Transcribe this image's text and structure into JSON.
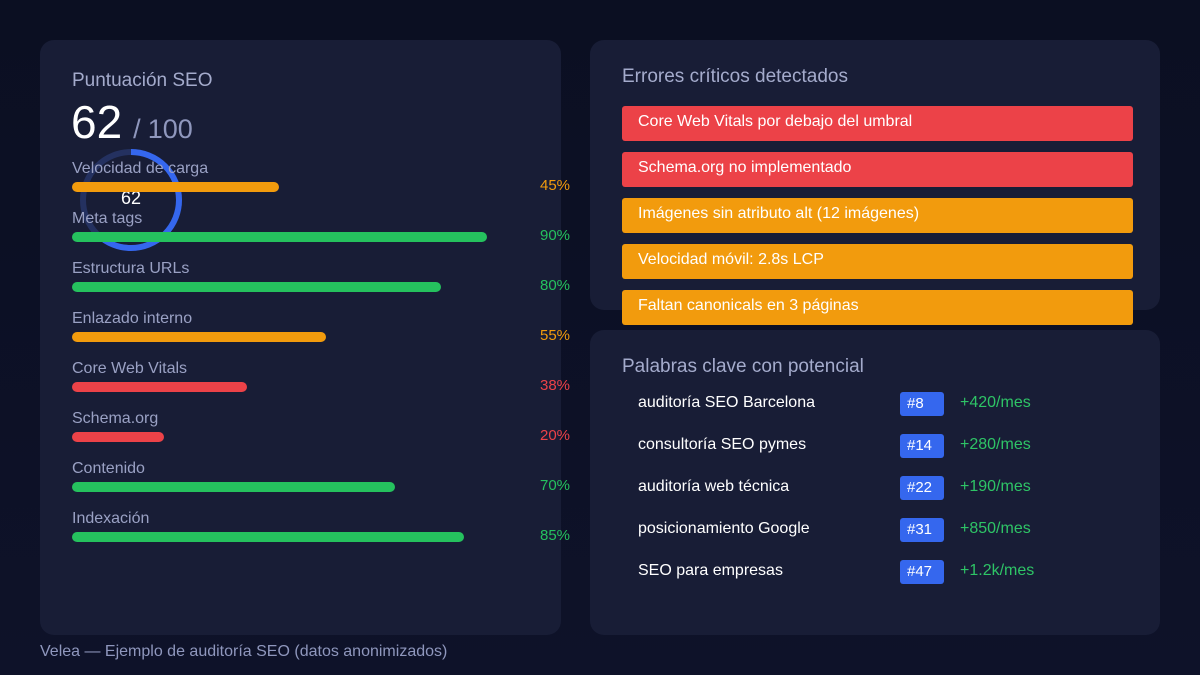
{
  "score_card": {
    "title": "Puntuación SEO",
    "score": "62",
    "separator": "/",
    "max": "100",
    "gauge_label": "62",
    "gauge_fraction": 0.62,
    "metrics": [
      {
        "label": "Velocidad de carga",
        "value": 45,
        "pct": "45%",
        "color": "#f29b0d"
      },
      {
        "label": "Meta tags",
        "value": 90,
        "pct": "90%",
        "color": "#25c15e"
      },
      {
        "label": "Estructura URLs",
        "value": 80,
        "pct": "80%",
        "color": "#25c15e"
      },
      {
        "label": "Enlazado interno",
        "value": 55,
        "pct": "55%",
        "color": "#f29b0d"
      },
      {
        "label": "Core Web Vitals",
        "value": 38,
        "pct": "38%",
        "color": "#ec4248"
      },
      {
        "label": "Schema.org",
        "value": 20,
        "pct": "20%",
        "color": "#ec4248"
      },
      {
        "label": "Contenido",
        "value": 70,
        "pct": "70%",
        "color": "#25c15e"
      },
      {
        "label": "Indexación",
        "value": 85,
        "pct": "85%",
        "color": "#25c15e"
      }
    ]
  },
  "errors_card": {
    "title": "Errores críticos detectados",
    "items": [
      {
        "text": "Core Web Vitals por debajo del umbral",
        "color": "#ec4248"
      },
      {
        "text": "Schema.org no implementado",
        "color": "#ec4248"
      },
      {
        "text": "Imágenes sin atributo alt (12 imágenes)",
        "color": "#f29b0d"
      },
      {
        "text": "Velocidad móvil: 2.8s LCP",
        "color": "#f29b0d"
      },
      {
        "text": "Faltan canonicals en 3 páginas",
        "color": "#f29b0d"
      }
    ]
  },
  "keywords_card": {
    "title": "Palabras clave con potencial",
    "items": [
      {
        "keyword": "auditoría SEO Barcelona",
        "rank": "#8",
        "gain": "+420/mes"
      },
      {
        "keyword": "consultoría SEO pymes",
        "rank": "#14",
        "gain": "+280/mes"
      },
      {
        "keyword": "auditoría web técnica",
        "rank": "#22",
        "gain": "+190/mes"
      },
      {
        "keyword": "posicionamiento Google",
        "rank": "#31",
        "gain": "+850/mes"
      },
      {
        "keyword": "SEO para empresas",
        "rank": "#47",
        "gain": "+1.2k/mes"
      }
    ]
  },
  "footer": "Velea — Ejemplo de auditoría SEO (datos anonimizados)"
}
